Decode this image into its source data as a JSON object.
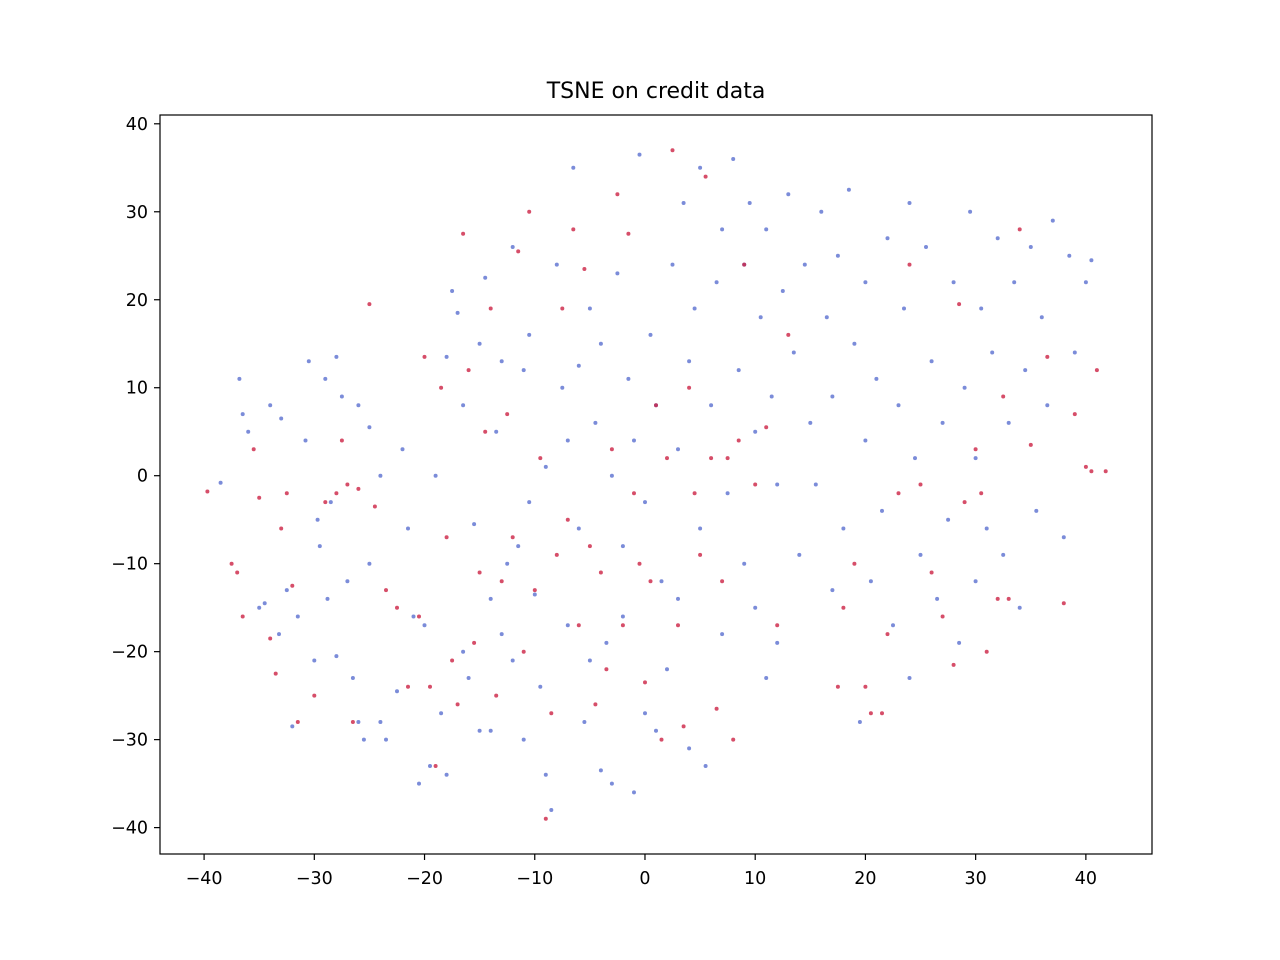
{
  "chart_data": {
    "type": "scatter",
    "title": "TSNE on credit data",
    "xlabel": "",
    "ylabel": "",
    "xlim": [
      -44,
      46
    ],
    "ylim": [
      -43,
      41
    ],
    "x_ticks": [
      -40,
      -30,
      -20,
      -10,
      0,
      10,
      20,
      30,
      40
    ],
    "y_ticks": [
      -40,
      -30,
      -20,
      -10,
      0,
      10,
      20,
      30,
      40
    ],
    "x_tick_labels": [
      "−40",
      "−30",
      "−20",
      "−10",
      "0",
      "10",
      "20",
      "30",
      "40"
    ],
    "y_tick_labels": [
      "−40",
      "−30",
      "−20",
      "−10",
      "0",
      "10",
      "20",
      "30",
      "40"
    ],
    "grid": false,
    "legend": "none",
    "series": [
      {
        "color": "#5a6fcf",
        "points": [
          [
            -38.5,
            -0.8
          ],
          [
            -36.8,
            11
          ],
          [
            -36.5,
            7
          ],
          [
            -36,
            5
          ],
          [
            -35,
            -15
          ],
          [
            -34.5,
            -14.5
          ],
          [
            -34,
            8
          ],
          [
            -33.2,
            -18
          ],
          [
            -33,
            6.5
          ],
          [
            -32.5,
            -13
          ],
          [
            -32,
            -28.5
          ],
          [
            -31.5,
            -16
          ],
          [
            -30.8,
            4
          ],
          [
            -30.5,
            13
          ],
          [
            -30,
            -21
          ],
          [
            -29.7,
            -5
          ],
          [
            -29.5,
            -8
          ],
          [
            -29,
            11
          ],
          [
            -28.8,
            -14
          ],
          [
            -28.5,
            -3
          ],
          [
            -28,
            13.5
          ],
          [
            -28,
            -20.5
          ],
          [
            -27.5,
            9
          ],
          [
            -27,
            -12
          ],
          [
            -26.5,
            -23
          ],
          [
            -26,
            8
          ],
          [
            -26,
            -28
          ],
          [
            -25.5,
            -30
          ],
          [
            -25,
            5.5
          ],
          [
            -25,
            -10
          ],
          [
            -24,
            -28
          ],
          [
            -24,
            0
          ],
          [
            -23.5,
            -30
          ],
          [
            -22.5,
            -24.5
          ],
          [
            -22,
            3
          ],
          [
            -21.5,
            -6
          ],
          [
            -21,
            -16
          ],
          [
            -20.5,
            -35
          ],
          [
            -20,
            -17
          ],
          [
            -19.5,
            -33
          ],
          [
            -19,
            0
          ],
          [
            -18.5,
            -27
          ],
          [
            -18,
            13.5
          ],
          [
            -18,
            -34
          ],
          [
            -17.5,
            21
          ],
          [
            -17,
            18.5
          ],
          [
            -16.5,
            -20
          ],
          [
            -16.5,
            8
          ],
          [
            -16,
            -23
          ],
          [
            -15.5,
            -5.5
          ],
          [
            -15,
            -29
          ],
          [
            -15,
            15
          ],
          [
            -14.5,
            22.5
          ],
          [
            -14,
            -14
          ],
          [
            -14,
            -29
          ],
          [
            -13.5,
            5
          ],
          [
            -13,
            13
          ],
          [
            -13,
            -18
          ],
          [
            -12.5,
            -10
          ],
          [
            -12,
            26
          ],
          [
            -12,
            -21
          ],
          [
            -11.5,
            -8
          ],
          [
            -11,
            -30
          ],
          [
            -11,
            12
          ],
          [
            -10.5,
            16
          ],
          [
            -10.5,
            -3
          ],
          [
            -10,
            -13.5
          ],
          [
            -9.5,
            -24
          ],
          [
            -9,
            1
          ],
          [
            -9,
            -34
          ],
          [
            -8.5,
            -38
          ],
          [
            -8,
            24
          ],
          [
            -7.5,
            10
          ],
          [
            -7,
            -17
          ],
          [
            -7,
            4
          ],
          [
            -6.5,
            35
          ],
          [
            -6,
            -6
          ],
          [
            -6,
            12.5
          ],
          [
            -5.5,
            -28
          ],
          [
            -5,
            19
          ],
          [
            -5,
            -21
          ],
          [
            -4.5,
            6
          ],
          [
            -4,
            -33.5
          ],
          [
            -4,
            15
          ],
          [
            -3.5,
            -19
          ],
          [
            -3,
            -35
          ],
          [
            -3,
            0
          ],
          [
            -2.5,
            23
          ],
          [
            -2,
            -16
          ],
          [
            -2,
            -8
          ],
          [
            -1.5,
            11
          ],
          [
            -1,
            -36
          ],
          [
            -1,
            4
          ],
          [
            -0.5,
            36.5
          ],
          [
            0,
            -27
          ],
          [
            0,
            -3
          ],
          [
            0.5,
            16
          ],
          [
            1,
            -29
          ],
          [
            1,
            8
          ],
          [
            1.5,
            -12
          ],
          [
            2,
            -22
          ],
          [
            2.5,
            24
          ],
          [
            3,
            -14
          ],
          [
            3,
            3
          ],
          [
            3.5,
            31
          ],
          [
            4,
            -31
          ],
          [
            4,
            13
          ],
          [
            4.5,
            19
          ],
          [
            5,
            -6
          ],
          [
            5,
            35
          ],
          [
            5.5,
            -33
          ],
          [
            6,
            8
          ],
          [
            6.5,
            22
          ],
          [
            7,
            -18
          ],
          [
            7,
            28
          ],
          [
            7.5,
            -2
          ],
          [
            8,
            36
          ],
          [
            8.5,
            12
          ],
          [
            9,
            -10
          ],
          [
            9,
            24
          ],
          [
            9.5,
            31
          ],
          [
            10,
            -15
          ],
          [
            10,
            5
          ],
          [
            10.5,
            18
          ],
          [
            11,
            -23
          ],
          [
            11,
            28
          ],
          [
            11.5,
            9
          ],
          [
            12,
            -19
          ],
          [
            12,
            -1
          ],
          [
            12.5,
            21
          ],
          [
            13,
            32
          ],
          [
            13.5,
            14
          ],
          [
            14,
            -9
          ],
          [
            14.5,
            24
          ],
          [
            15,
            6
          ],
          [
            15.5,
            -1
          ],
          [
            16,
            30
          ],
          [
            16.5,
            18
          ],
          [
            17,
            -13
          ],
          [
            17,
            9
          ],
          [
            17.5,
            25
          ],
          [
            18,
            -6
          ],
          [
            18.5,
            32.5
          ],
          [
            19,
            15
          ],
          [
            19.5,
            -28
          ],
          [
            20,
            22
          ],
          [
            20,
            4
          ],
          [
            20.5,
            -12
          ],
          [
            21,
            11
          ],
          [
            21.5,
            -4
          ],
          [
            22,
            27
          ],
          [
            22.5,
            -17
          ],
          [
            23,
            8
          ],
          [
            23.5,
            19
          ],
          [
            24,
            -23
          ],
          [
            24,
            31
          ],
          [
            24.5,
            2
          ],
          [
            25,
            -9
          ],
          [
            25.5,
            26
          ],
          [
            26,
            13
          ],
          [
            26.5,
            -14
          ],
          [
            27,
            6
          ],
          [
            27.5,
            -5
          ],
          [
            28,
            22
          ],
          [
            28.5,
            -19
          ],
          [
            29,
            10
          ],
          [
            29.5,
            30
          ],
          [
            30,
            -12
          ],
          [
            30,
            2
          ],
          [
            30.5,
            19
          ],
          [
            31,
            -6
          ],
          [
            31.5,
            14
          ],
          [
            32,
            27
          ],
          [
            32.5,
            -9
          ],
          [
            33,
            6
          ],
          [
            33.5,
            22
          ],
          [
            34,
            -15
          ],
          [
            34.5,
            12
          ],
          [
            35,
            26
          ],
          [
            35.5,
            -4
          ],
          [
            36,
            18
          ],
          [
            36.5,
            8
          ],
          [
            37,
            29
          ],
          [
            38,
            -7
          ],
          [
            38.5,
            25
          ],
          [
            39,
            14
          ],
          [
            40,
            22
          ],
          [
            40.5,
            24.5
          ]
        ]
      },
      {
        "color": "#cc2244",
        "points": [
          [
            -39.7,
            -1.8
          ],
          [
            -37.5,
            -10
          ],
          [
            -37,
            -11
          ],
          [
            -36.5,
            -16
          ],
          [
            -35.5,
            3
          ],
          [
            -35,
            -2.5
          ],
          [
            -34,
            -18.5
          ],
          [
            -33.5,
            -22.5
          ],
          [
            -33,
            -6
          ],
          [
            -32.5,
            -2
          ],
          [
            -32,
            -12.5
          ],
          [
            -31.5,
            -28
          ],
          [
            -30,
            -25
          ],
          [
            -29,
            -3
          ],
          [
            -28,
            -2
          ],
          [
            -27.5,
            4
          ],
          [
            -27,
            -1
          ],
          [
            -26.5,
            -28
          ],
          [
            -26,
            -1.5
          ],
          [
            -25,
            19.5
          ],
          [
            -24.5,
            -3.5
          ],
          [
            -23.5,
            -13
          ],
          [
            -22.5,
            -15
          ],
          [
            -21.5,
            -24
          ],
          [
            -20.5,
            -16
          ],
          [
            -20,
            13.5
          ],
          [
            -19.5,
            -24
          ],
          [
            -19,
            -33
          ],
          [
            -18.5,
            10
          ],
          [
            -18,
            -7
          ],
          [
            -17.5,
            -21
          ],
          [
            -17,
            -26
          ],
          [
            -16.5,
            27.5
          ],
          [
            -16,
            12
          ],
          [
            -15.5,
            -19
          ],
          [
            -15,
            -11
          ],
          [
            -14.5,
            5
          ],
          [
            -14,
            19
          ],
          [
            -13.5,
            -25
          ],
          [
            -13,
            -12
          ],
          [
            -12.5,
            7
          ],
          [
            -12,
            -7
          ],
          [
            -11.5,
            25.5
          ],
          [
            -11,
            -20
          ],
          [
            -10.5,
            30
          ],
          [
            -10,
            -13
          ],
          [
            -9.5,
            2
          ],
          [
            -9,
            -39
          ],
          [
            -8.5,
            -27
          ],
          [
            -8,
            -9
          ],
          [
            -7.5,
            19
          ],
          [
            -7,
            -5
          ],
          [
            -6.5,
            28
          ],
          [
            -6,
            -17
          ],
          [
            -5.5,
            23.5
          ],
          [
            -5,
            -8
          ],
          [
            -4.5,
            -26
          ],
          [
            -4,
            -11
          ],
          [
            -3.5,
            -22
          ],
          [
            -3,
            3
          ],
          [
            -2.5,
            32
          ],
          [
            -2,
            -17
          ],
          [
            -1.5,
            27.5
          ],
          [
            -1,
            -2
          ],
          [
            -0.5,
            -10
          ],
          [
            0,
            -23.5
          ],
          [
            0.5,
            -12
          ],
          [
            1,
            8
          ],
          [
            1.5,
            -30
          ],
          [
            2,
            2
          ],
          [
            2.5,
            37
          ],
          [
            3,
            -17
          ],
          [
            3.5,
            -28.5
          ],
          [
            4,
            10
          ],
          [
            4.5,
            -2
          ],
          [
            5,
            -9
          ],
          [
            5.5,
            34
          ],
          [
            6,
            2
          ],
          [
            6.5,
            -26.5
          ],
          [
            7,
            -12
          ],
          [
            7.5,
            2
          ],
          [
            8,
            -30
          ],
          [
            8.5,
            4
          ],
          [
            9,
            24
          ],
          [
            10,
            -1
          ],
          [
            11,
            5.5
          ],
          [
            12,
            -17
          ],
          [
            13,
            16
          ],
          [
            17.5,
            -24
          ],
          [
            18,
            -15
          ],
          [
            19,
            -10
          ],
          [
            20,
            -24
          ],
          [
            20.5,
            -27
          ],
          [
            21.5,
            -27
          ],
          [
            22,
            -18
          ],
          [
            23,
            -2
          ],
          [
            24,
            24
          ],
          [
            25,
            -1
          ],
          [
            26,
            -11
          ],
          [
            27,
            -16
          ],
          [
            28,
            -21.5
          ],
          [
            28.5,
            19.5
          ],
          [
            29,
            -3
          ],
          [
            30,
            3
          ],
          [
            30.5,
            -2
          ],
          [
            31,
            -20
          ],
          [
            32,
            -14
          ],
          [
            32.5,
            9
          ],
          [
            33,
            -14
          ],
          [
            34,
            28
          ],
          [
            35,
            3.5
          ],
          [
            36.5,
            13.5
          ],
          [
            38,
            -14.5
          ],
          [
            39,
            7
          ],
          [
            40,
            1
          ],
          [
            40.5,
            0.5
          ],
          [
            41,
            12
          ],
          [
            41.8,
            0.5
          ]
        ]
      }
    ]
  }
}
